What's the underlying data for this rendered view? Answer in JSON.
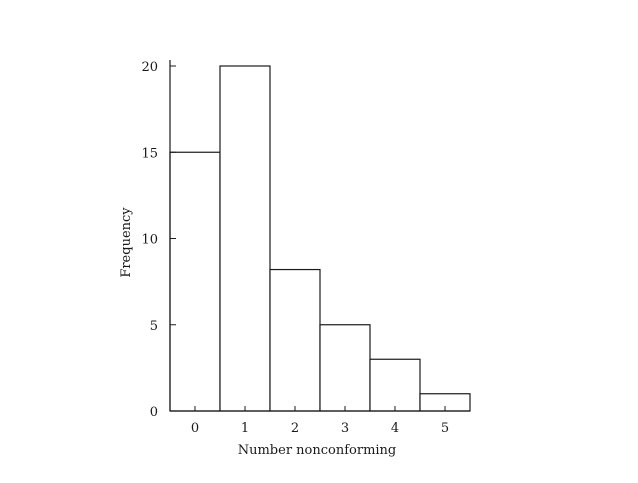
{
  "chart_data": {
    "type": "bar",
    "categories": [
      "0",
      "1",
      "2",
      "3",
      "4",
      "5"
    ],
    "values": [
      15,
      20,
      8.2,
      5,
      3,
      1
    ],
    "xlabel": "Number nonconforming",
    "ylabel": "Frequency",
    "yticks": [
      "0",
      "5",
      "10",
      "15",
      "20"
    ],
    "ylim": [
      0,
      20
    ],
    "grid": false,
    "legend": "none"
  }
}
